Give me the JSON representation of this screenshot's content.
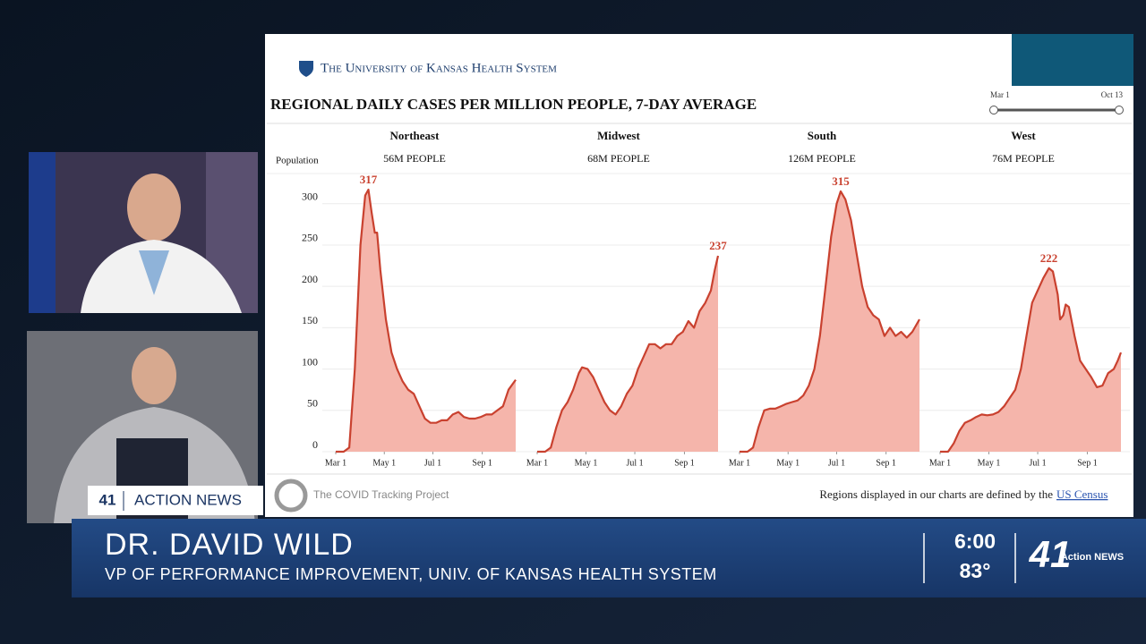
{
  "header": {
    "org": "The University of Kansas Health System",
    "title": "REGIONAL DAILY CASES PER MILLION PEOPLE, 7-DAY AVERAGE",
    "population_label": "Population"
  },
  "slider": {
    "start": "Mar 1",
    "end": "Oct 13"
  },
  "chart_data": [
    {
      "type": "area",
      "title": "Northeast",
      "subtitle": "56M PEOPLE",
      "color": "#c9412f",
      "fill": "#f5b5ab",
      "x": [
        0,
        10,
        17,
        24,
        31,
        37,
        41,
        45,
        49,
        52,
        56,
        63,
        70,
        77,
        84,
        91,
        98,
        105,
        112,
        119,
        126,
        133,
        140,
        147,
        154,
        161,
        168,
        175,
        182,
        189,
        196,
        203,
        210,
        217,
        226
      ],
      "values": [
        0,
        0,
        5,
        100,
        250,
        310,
        317,
        290,
        265,
        265,
        220,
        160,
        120,
        100,
        85,
        75,
        70,
        55,
        40,
        35,
        35,
        38,
        38,
        45,
        48,
        42,
        40,
        40,
        42,
        45,
        45,
        50,
        55,
        75,
        87
      ],
      "annotation": {
        "x": 41,
        "value": 317
      },
      "xlim": [
        0,
        226
      ],
      "ylim": [
        0,
        330
      ],
      "yticks": [
        0,
        50,
        100,
        150,
        200,
        250,
        300
      ],
      "xticks": [
        {
          "value": 0,
          "label": "Mar 1"
        },
        {
          "value": 61,
          "label": "May 1"
        },
        {
          "value": 122,
          "label": "Jul 1"
        },
        {
          "value": 184,
          "label": "Sep 1"
        }
      ]
    },
    {
      "type": "area",
      "title": "Midwest",
      "subtitle": "68M PEOPLE",
      "color": "#c9412f",
      "fill": "#f5b5ab",
      "x": [
        0,
        10,
        17,
        24,
        31,
        38,
        45,
        52,
        56,
        63,
        70,
        77,
        84,
        91,
        98,
        105,
        112,
        119,
        126,
        133,
        140,
        147,
        154,
        161,
        168,
        175,
        182,
        189,
        196,
        203,
        210,
        217,
        222,
        226
      ],
      "values": [
        0,
        0,
        5,
        30,
        50,
        60,
        75,
        95,
        102,
        100,
        90,
        75,
        60,
        50,
        45,
        55,
        70,
        80,
        100,
        115,
        130,
        130,
        125,
        130,
        130,
        140,
        145,
        158,
        150,
        170,
        180,
        195,
        220,
        237
      ],
      "annotation": {
        "x": 226,
        "value": 237
      },
      "xlim": [
        0,
        226
      ],
      "ylim": [
        0,
        330
      ],
      "xticks": [
        {
          "value": 0,
          "label": "Mar 1"
        },
        {
          "value": 61,
          "label": "May 1"
        },
        {
          "value": 122,
          "label": "Jul 1"
        },
        {
          "value": 184,
          "label": "Sep 1"
        }
      ]
    },
    {
      "type": "area",
      "title": "South",
      "subtitle": "126M PEOPLE",
      "color": "#c9412f",
      "fill": "#f5b5ab",
      "x": [
        0,
        10,
        17,
        24,
        31,
        38,
        45,
        52,
        59,
        66,
        73,
        80,
        87,
        94,
        101,
        108,
        115,
        122,
        127,
        133,
        140,
        147,
        154,
        161,
        168,
        175,
        182,
        189,
        196,
        203,
        210,
        217,
        226
      ],
      "values": [
        0,
        0,
        5,
        30,
        50,
        52,
        52,
        55,
        58,
        60,
        62,
        68,
        80,
        100,
        140,
        200,
        260,
        300,
        315,
        305,
        280,
        240,
        200,
        175,
        165,
        160,
        140,
        150,
        140,
        145,
        138,
        145,
        160
      ],
      "annotation": {
        "x": 127,
        "value": 315
      },
      "xlim": [
        0,
        226
      ],
      "ylim": [
        0,
        330
      ],
      "xticks": [
        {
          "value": 0,
          "label": "Mar 1"
        },
        {
          "value": 61,
          "label": "May 1"
        },
        {
          "value": 122,
          "label": "Jul 1"
        },
        {
          "value": 184,
          "label": "Sep 1"
        }
      ]
    },
    {
      "type": "area",
      "title": "West",
      "subtitle": "76M PEOPLE",
      "color": "#c9412f",
      "fill": "#f5b5ab",
      "x": [
        0,
        10,
        17,
        24,
        31,
        38,
        45,
        52,
        59,
        66,
        73,
        80,
        87,
        94,
        101,
        108,
        115,
        122,
        129,
        136,
        141,
        147,
        150,
        154,
        157,
        161,
        168,
        175,
        182,
        189,
        196,
        203,
        210,
        217,
        222,
        226
      ],
      "values": [
        0,
        0,
        10,
        25,
        35,
        38,
        42,
        45,
        44,
        45,
        48,
        55,
        65,
        75,
        100,
        140,
        180,
        195,
        210,
        222,
        218,
        190,
        160,
        165,
        178,
        175,
        140,
        110,
        100,
        90,
        78,
        80,
        95,
        100,
        110,
        120
      ],
      "annotation": {
        "x": 136,
        "value": 222
      },
      "xlim": [
        0,
        226
      ],
      "ylim": [
        0,
        330
      ],
      "xticks": [
        {
          "value": 0,
          "label": "Mar 1"
        },
        {
          "value": 61,
          "label": "May 1"
        },
        {
          "value": 122,
          "label": "Jul 1"
        },
        {
          "value": 184,
          "label": "Sep 1"
        }
      ]
    }
  ],
  "footer": {
    "source": "The COVID Tracking Project",
    "note": "Regions displayed in our charts are defined by the",
    "link": "US Census"
  },
  "broadcast": {
    "channel": "41",
    "bug": "ACTION NEWS",
    "name": "DR. DAVID WILD",
    "role": "VP OF PERFORMANCE IMPROVEMENT, UNIV. OF KANSAS HEALTH SYSTEM",
    "time": "6:00",
    "temperature": "83°",
    "logo_number": "41",
    "logo_text": "Action NEWS"
  }
}
